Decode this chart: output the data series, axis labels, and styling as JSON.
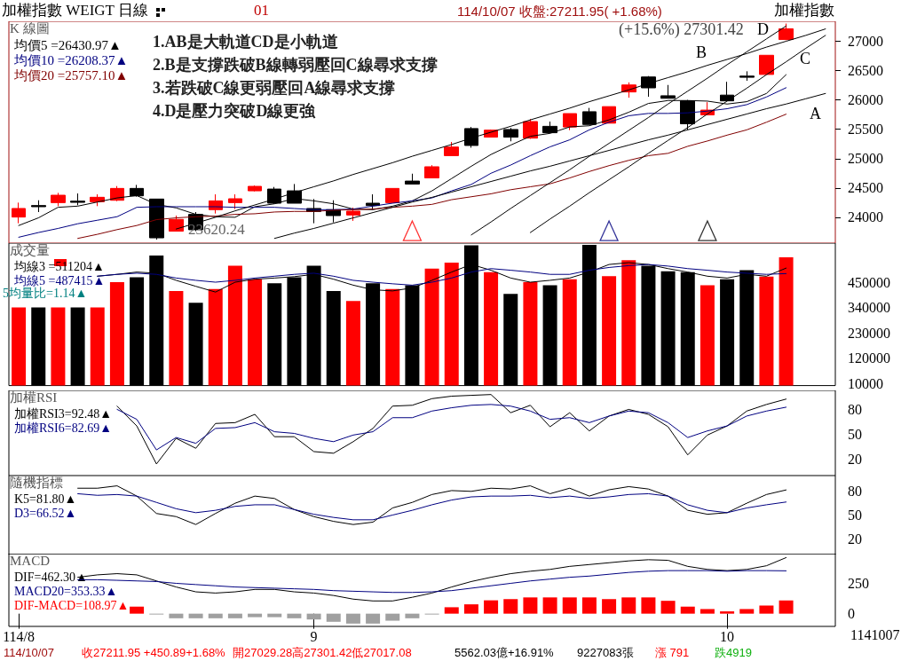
{
  "chart_data": [
    {
      "type": "candlestick",
      "title": "K 線圖",
      "legend": "top left",
      "marker": "none",
      "tick_labels": "y",
      "ylim": [
        23560,
        27340
      ],
      "yticks": [
        24000,
        24500,
        25000,
        25500,
        26000,
        26500,
        27000
      ],
      "ohlc": [
        [
          24004,
          24250,
          23898,
          24150
        ],
        [
          24200,
          24290,
          24089,
          24180
        ],
        [
          24250,
          24416,
          24190,
          24376
        ],
        [
          24275,
          24406,
          24205,
          24255
        ],
        [
          24265,
          24391,
          24190,
          24341
        ],
        [
          24290,
          24532,
          24275,
          24492
        ],
        [
          24492,
          24552,
          24351,
          24366
        ],
        [
          24311,
          24311,
          23620.24,
          23650
        ],
        [
          23763,
          24029,
          23763,
          23964
        ],
        [
          24049,
          24089,
          23763,
          23788
        ],
        [
          24130,
          24391,
          24064,
          24280
        ],
        [
          24250,
          24391,
          24140,
          24316
        ],
        [
          24451,
          24542,
          24441,
          24527
        ],
        [
          24481,
          24517,
          24230,
          24240
        ],
        [
          24451,
          24567,
          24240,
          24240
        ],
        [
          24150,
          24311,
          23898,
          24099
        ],
        [
          24130,
          24290,
          23913,
          24029
        ],
        [
          24039,
          24165,
          23939,
          24104
        ],
        [
          24240,
          24391,
          24130,
          24200
        ],
        [
          24250,
          24492,
          24250,
          24492
        ],
        [
          24617,
          24743,
          24567,
          24567
        ],
        [
          24671,
          24888,
          24671,
          24861
        ],
        [
          25051,
          25284,
          25051,
          25197
        ],
        [
          25512,
          25539,
          25186,
          25224
        ],
        [
          25365,
          25496,
          25365,
          25485
        ],
        [
          25496,
          25523,
          25295,
          25365
        ],
        [
          25349,
          25675,
          25338,
          25631
        ],
        [
          25550,
          25631,
          25430,
          25441
        ],
        [
          25539,
          25767,
          25485,
          25767
        ],
        [
          25799,
          25864,
          25582,
          25582
        ],
        [
          25604,
          25886,
          25604,
          25886
        ],
        [
          26136,
          26299,
          26038,
          26255
        ],
        [
          26391,
          26407,
          26054,
          26206
        ],
        [
          26071,
          26255,
          26027,
          26027
        ],
        [
          25984,
          26000,
          25485,
          25593
        ],
        [
          25745,
          25962,
          25745,
          25827
        ],
        [
          26082,
          26309,
          25984,
          25984
        ],
        [
          26406,
          26488,
          26326,
          26386
        ],
        [
          26434,
          26761,
          26434,
          26761
        ],
        [
          27029.28,
          27301.42,
          27017.08,
          27211.95
        ],
        null,
        null
      ],
      "colors": [
        "#ff0000",
        "#000000",
        "#ff0000",
        "#000000",
        "#ff0000",
        "#ff0000",
        "#000000",
        "#000000",
        "#ff0000",
        "#000000",
        "#ff0000",
        "#ff0000",
        "#ff0000",
        "#000000",
        "#000000",
        "#000000",
        "#000000",
        "#ff0000",
        "#000000",
        "#ff0000",
        "#000000",
        "#ff0000",
        "#ff0000",
        "#000000",
        "#ff0000",
        "#000000",
        "#ff0000",
        "#000000",
        "#ff0000",
        "#000000",
        "#ff0000",
        "#ff0000",
        "#000000",
        "#000000",
        "#000000",
        "#ff0000",
        "#000000",
        "#000000",
        "#ff0000",
        "#ff0000",
        null,
        null
      ],
      "series": [
        {
          "type": "line",
          "name": "均價5 =26430.97▲",
          "color": "#000000",
          "values": [
            23860,
            23990,
            24170,
            24190,
            24260,
            24330,
            24370,
            24220,
            24160,
            24050,
            24010,
            24000,
            24180,
            24230,
            24320,
            24280,
            24230,
            24140,
            24130,
            24190,
            24280,
            24450,
            24660,
            24870,
            25070,
            25230,
            25380,
            25430,
            25540,
            25560,
            25660,
            25790,
            25940,
            25990,
            25990,
            25980,
            25930,
            25970,
            26110,
            26430.97,
            null,
            null
          ]
        },
        {
          "type": "line",
          "name": "均價10 =26208.37▲",
          "color": "#000080",
          "values": [
            23660,
            23740,
            23810,
            23890,
            23950,
            24010,
            24170,
            24180,
            24180,
            24180,
            24180,
            24170,
            24170,
            24170,
            24150,
            24130,
            24130,
            24140,
            24190,
            24240,
            24280,
            24330,
            24450,
            24560,
            24750,
            24890,
            25050,
            25200,
            25320,
            25490,
            25620,
            25730,
            25770,
            25770,
            25780,
            25810,
            25850,
            25920,
            26050,
            26208.37,
            null,
            null
          ]
        },
        {
          "type": "line",
          "name": "均價20 =25757.10▲",
          "color": "#800000",
          "values": [
            null,
            null,
            null,
            23640,
            23710,
            23790,
            23860,
            23960,
            23990,
            24010,
            24020,
            24050,
            24060,
            24090,
            24100,
            24100,
            24120,
            24130,
            24140,
            24170,
            24190,
            24220,
            24300,
            24350,
            24400,
            24470,
            24520,
            24570,
            24670,
            24780,
            24880,
            24970,
            25050,
            25090,
            25210,
            25300,
            25400,
            25490,
            25620,
            25757.1,
            null,
            null
          ]
        },
        {
          "type": "line",
          "color": "#000000",
          "values": [
            null,
            null,
            null,
            null,
            null,
            null,
            null,
            null,
            null,
            null,
            null,
            null,
            null,
            23640,
            23730,
            23810,
            23900,
            23990,
            24080,
            24170,
            24260,
            24340,
            24430,
            24520,
            24610,
            24700,
            24790,
            24870,
            24960,
            25050,
            25140,
            25230,
            25320,
            25400,
            25490,
            25580,
            25670,
            25760,
            25850,
            25930,
            26020,
            26110
          ]
        },
        {
          "type": "line",
          "color": "#000000",
          "values": [
            null,
            null,
            null,
            null,
            null,
            null,
            null,
            null,
            23800,
            23900,
            24000,
            24110,
            24210,
            24310,
            24420,
            24520,
            24620,
            24730,
            24830,
            24930,
            25040,
            25140,
            25240,
            25350,
            25450,
            25550,
            25660,
            25760,
            25860,
            25970,
            26070,
            26170,
            26280,
            26380,
            26480,
            26590,
            26690,
            26790,
            26900,
            27000,
            27100,
            27210
          ]
        },
        {
          "type": "line",
          "color": "#000000",
          "values": [
            null,
            null,
            null,
            null,
            null,
            null,
            null,
            null,
            null,
            null,
            null,
            null,
            null,
            null,
            null,
            null,
            null,
            null,
            null,
            null,
            null,
            null,
            null,
            null,
            null,
            null,
            23740,
            23970,
            24190,
            24420,
            24640,
            24860,
            25090,
            25310,
            25530,
            25760,
            25980,
            26200,
            26430,
            26650,
            26880,
            27100
          ]
        },
        {
          "type": "line",
          "color": "#000000",
          "values": [
            null,
            null,
            null,
            null,
            null,
            null,
            null,
            null,
            null,
            null,
            null,
            null,
            null,
            null,
            null,
            null,
            null,
            null,
            null,
            null,
            null,
            null,
            null,
            23700,
            23920,
            24150,
            24370,
            24590,
            24810,
            25040,
            25260,
            25480,
            25700,
            25930,
            26150,
            26370,
            26600,
            26820,
            27040,
            27260,
            null,
            null
          ]
        },
        {
          "type": "scatter",
          "marker": "triangle",
          "values": [
            null,
            null,
            null,
            null,
            null,
            null,
            null,
            null,
            null,
            null,
            null,
            null,
            null,
            null,
            null,
            null,
            null,
            null,
            null,
            null,
            23770,
            null,
            null,
            null,
            null,
            null,
            null,
            null,
            null,
            null,
            23770,
            null,
            null,
            null,
            null,
            23770,
            null,
            null,
            null,
            null,
            null,
            null
          ],
          "colors": [
            null,
            null,
            null,
            null,
            null,
            null,
            null,
            null,
            null,
            null,
            null,
            null,
            null,
            null,
            null,
            null,
            null,
            null,
            null,
            null,
            "#ff0000",
            null,
            null,
            null,
            null,
            null,
            null,
            null,
            null,
            null,
            "#000080",
            null,
            null,
            null,
            null,
            "#000000",
            null,
            null,
            null,
            null,
            null,
            null
          ]
        }
      ],
      "annotations": [
        "加權指數 WEIGT 日線",
        "01",
        "114/10/07 收盤:27211.95( +1.68%)",
        "加權指數",
        "1.AB是大軌道CD是小軌道",
        "2.B是支撐跌破B線轉弱壓回C線尋求支撐",
        "3.若跌破C線更弱壓回A線尋求支撐",
        "4.D是壓力突破D線更強",
        "(+15.6%) 27301.42",
        "23620.24",
        "A",
        "B",
        "C",
        "D"
      ]
    },
    {
      "type": "bar",
      "title": "成交量",
      "legend": "top left",
      "marker": "none",
      "tick_labels": "y",
      "ylim": [
        0,
        620000
      ],
      "yticks": [
        10000,
        120000,
        230000,
        340000,
        450000
      ],
      "series": [
        {
          "type": "bar",
          "values": [
            340000,
            340000,
            340000,
            340000,
            340000,
            450000,
            471000,
            566000,
            412000,
            360000,
            420000,
            522000,
            463000,
            445000,
            471000,
            522000,
            412000,
            368000,
            445000,
            420000,
            437000,
            509000,
            535000,
            610000,
            494000,
            399000,
            450000,
            437000,
            463000,
            612000,
            476000,
            546000,
            522000,
            497000,
            494000,
            437000,
            463000,
            502000,
            474000,
            558000,
            null,
            null
          ],
          "colors": [
            "#ff0000",
            "#000000",
            "#ff0000",
            "#000000",
            "#ff0000",
            "#ff0000",
            "#000000",
            "#000000",
            "#ff0000",
            "#000000",
            "#ff0000",
            "#ff0000",
            "#ff0000",
            "#000000",
            "#000000",
            "#000000",
            "#000000",
            "#ff0000",
            "#000000",
            "#ff0000",
            "#000000",
            "#ff0000",
            "#ff0000",
            "#000000",
            "#ff0000",
            "#000000",
            "#ff0000",
            "#000000",
            "#ff0000",
            "#000000",
            "#ff0000",
            "#ff0000",
            "#000000",
            "#000000",
            "#000000",
            "#ff0000",
            "#000000",
            "#000000",
            "#ff0000",
            "#ff0000",
            null,
            null
          ]
        },
        {
          "type": "line",
          "name": "均線3 =511204▲",
          "color": "#000000",
          "values": [
            null,
            null,
            null,
            null,
            476000,
            484000,
            494000,
            489000,
            458000,
            432000,
            407000,
            450000,
            463000,
            468000,
            474000,
            484000,
            463000,
            437000,
            417000,
            412000,
            425000,
            458000,
            494000,
            527000,
            502000,
            468000,
            450000,
            458000,
            468000,
            494000,
            527000,
            535000,
            527000,
            509000,
            494000,
            476000,
            468000,
            484000,
            476000,
            511204,
            null,
            null
          ]
        },
        {
          "type": "line",
          "name": "均線5 =487415▲",
          "color": "#000080",
          "values": [
            null,
            null,
            null,
            null,
            476000,
            484000,
            489000,
            484000,
            468000,
            458000,
            450000,
            458000,
            468000,
            476000,
            484000,
            489000,
            476000,
            458000,
            450000,
            443000,
            437000,
            450000,
            468000,
            494000,
            509000,
            502000,
            494000,
            484000,
            484000,
            502000,
            514000,
            522000,
            527000,
            520000,
            509000,
            502000,
            494000,
            489000,
            484000,
            487415,
            null,
            null
          ]
        }
      ],
      "annotations": [
        "5均量比=1.14▲"
      ]
    },
    {
      "type": "line",
      "title": "加權RSI",
      "legend": "top left",
      "marker": "none",
      "tick_labels": "y",
      "ylim": [
        0,
        103
      ],
      "yticks": [
        20,
        50,
        80
      ],
      "series": [
        {
          "name": "加權RSI3=92.48▲",
          "color": "#000000",
          "values": [
            null,
            null,
            null,
            null,
            null,
            84,
            60,
            14,
            45,
            33,
            63,
            64,
            74,
            47,
            47,
            29,
            27,
            41,
            57,
            84,
            85,
            93,
            96,
            97,
            98,
            76,
            85,
            59,
            76,
            54,
            72,
            80,
            74,
            59,
            25,
            49,
            60,
            78,
            86,
            92.48,
            null,
            null
          ]
        },
        {
          "name": "加權RSI6=82.69▲",
          "color": "#000080",
          "values": [
            null,
            null,
            null,
            null,
            null,
            80,
            68,
            31,
            46,
            39,
            57,
            58,
            64,
            53,
            51,
            45,
            41,
            49,
            53,
            70,
            70,
            78,
            82,
            85,
            86,
            84,
            78,
            68,
            70,
            64,
            72,
            78,
            76,
            64,
            46,
            54,
            60,
            72,
            78,
            82.69,
            null,
            null
          ]
        }
      ]
    },
    {
      "type": "line",
      "title": "隨機指標",
      "legend": "top left",
      "marker": "none",
      "tick_labels": "y",
      "ylim": [
        0,
        100
      ],
      "yticks": [
        20,
        50,
        80
      ],
      "series": [
        {
          "name": "K5=81.80▲",
          "color": "#000000",
          "values": [
            null,
            null,
            null,
            84,
            84,
            87,
            74,
            52,
            48,
            38,
            52,
            65,
            74,
            71,
            57,
            48,
            42,
            38,
            41,
            59,
            66,
            76,
            81,
            80,
            84,
            83,
            87,
            77,
            84,
            74,
            82,
            86,
            83,
            74,
            56,
            51,
            53,
            65,
            76,
            81.8,
            null,
            null
          ]
        },
        {
          "name": "D3=66.52▲",
          "color": "#000080",
          "values": [
            null,
            null,
            null,
            77,
            75,
            76,
            74,
            66,
            58,
            53,
            56,
            61,
            63,
            63,
            57,
            51,
            47,
            44,
            44,
            50,
            56,
            63,
            69,
            73,
            74,
            74,
            75,
            72,
            74,
            71,
            73,
            76,
            77,
            74,
            63,
            56,
            53,
            59,
            63,
            66.52,
            null,
            null
          ]
        }
      ]
    },
    {
      "type": "line",
      "title": "MACD",
      "legend": "left",
      "marker": "none",
      "categories": [
        "114/8",
        null,
        null,
        null,
        null,
        null,
        null,
        null,
        null,
        null,
        null,
        null,
        null,
        null,
        null,
        "9",
        null,
        null,
        null,
        null,
        null,
        null,
        null,
        null,
        null,
        null,
        null,
        null,
        null,
        null,
        null,
        null,
        null,
        null,
        null,
        null,
        "10",
        null,
        null,
        null,
        null,
        null
      ],
      "ylim": [
        -105,
        495
      ],
      "yticks": [
        0,
        250
      ],
      "series": [
        {
          "name": "DIF=462.30▲",
          "color": "#000000",
          "values": [
            null,
            null,
            null,
            300,
            320,
            330,
            320,
            270,
            220,
            180,
            170,
            180,
            200,
            200,
            180,
            170,
            150,
            120,
            105,
            105,
            135,
            170,
            220,
            265,
            300,
            330,
            350,
            365,
            390,
            405,
            420,
            435,
            445,
            440,
            390,
            365,
            355,
            365,
            395,
            462.3,
            null,
            null
          ]
        },
        {
          "name": "MACD20=353.33▲",
          "color": "#000080",
          "values": [
            null,
            null,
            null,
            280,
            280,
            275,
            270,
            265,
            250,
            240,
            230,
            220,
            215,
            210,
            205,
            200,
            190,
            185,
            180,
            175,
            175,
            180,
            190,
            210,
            230,
            250,
            270,
            285,
            300,
            310,
            325,
            340,
            350,
            355,
            355,
            355,
            350,
            355,
            355,
            353.33,
            null,
            null
          ]
        },
        {
          "type": "bar",
          "name": "DIF-MACD=108.97▲",
          "values": [
            null,
            null,
            null,
            null,
            null,
            null,
            58,
            -7,
            -38,
            -38,
            -38,
            -38,
            -29,
            -29,
            -38,
            -48,
            -67,
            -82,
            -82,
            -58,
            -38,
            -7,
            53,
            77,
            110,
            120,
            134,
            134,
            134,
            134,
            120,
            134,
            134,
            106,
            58,
            38,
            19,
            38,
            67,
            108.97,
            null,
            null
          ],
          "colors": [
            null,
            null,
            null,
            null,
            null,
            null,
            "#ff0000",
            "#a0a0a0",
            "#a0a0a0",
            "#a0a0a0",
            "#a0a0a0",
            "#a0a0a0",
            "#a0a0a0",
            "#a0a0a0",
            "#a0a0a0",
            "#a0a0a0",
            "#a0a0a0",
            "#a0a0a0",
            "#a0a0a0",
            "#a0a0a0",
            "#a0a0a0",
            "#a0a0a0",
            "#ff0000",
            "#ff0000",
            "#ff0000",
            "#ff0000",
            "#ff0000",
            "#ff0000",
            "#ff0000",
            "#ff0000",
            "#ff0000",
            "#ff0000",
            "#ff0000",
            "#ff0000",
            "#ff0000",
            "#ff0000",
            "#ff0000",
            "#ff0000",
            "#ff0000",
            "#ff0000",
            null,
            null
          ]
        }
      ],
      "annotations": [
        "1141007",
        "114/10/07",
        "收27211.95 +450.89+1.68%",
        "開27029.28高27301.42低27017.08",
        "5562.03億+16.91%",
        "9227083張",
        "漲 791",
        "跌4919"
      ]
    }
  ]
}
